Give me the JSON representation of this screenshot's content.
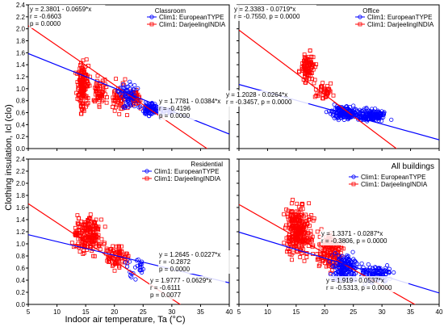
{
  "figure": {
    "y_axis_label": "Clothing insulation, Icl (clo)",
    "x_axis_label": "Indoor air temperature, Ta (°C)"
  },
  "colors": {
    "european": "#0000ff",
    "indian": "#ff0000",
    "axis": "#000000",
    "grid": "#c8c8c8"
  },
  "chart_data": [
    {
      "type": "scatter",
      "title": "Classroom",
      "xlim": [
        5,
        40
      ],
      "ylim": [
        0.0,
        2.4
      ],
      "x_ticks": [
        5,
        10,
        15,
        20,
        25,
        30,
        35,
        40
      ],
      "y_ticks": [
        0.0,
        0.2,
        0.4,
        0.6,
        0.8,
        1.0,
        1.2,
        1.4,
        1.6,
        1.8,
        2.0,
        2.2,
        2.4
      ],
      "legend": [
        "Clim1: EuropeanTYPE",
        "Clim1: DarjeelingINDIA"
      ],
      "annotations": [
        [
          "y = 2.3801 - 0.0659*x",
          "r = -0.6603",
          "p = 0.0000"
        ],
        [
          "y = 1.7781 - 0.0384*x",
          "r = -0.4196",
          "p = 0.0000"
        ]
      ],
      "fits": [
        {
          "series": "Clim1: DarjeelingINDIA",
          "intercept": 2.3801,
          "slope": -0.0659
        },
        {
          "series": "Clim1: EuropeanTYPE",
          "intercept": 1.7781,
          "slope": -0.0384
        }
      ],
      "clusters": {
        "Clim1: DarjeelingINDIA": [
          {
            "x": [
              13,
              16
            ],
            "y": [
              0.5,
              1.6
            ],
            "n": 150
          },
          {
            "x": [
              16,
              19
            ],
            "y": [
              0.6,
              1.3
            ],
            "n": 60
          },
          {
            "x": [
              19,
              23
            ],
            "y": [
              0.5,
              1.2
            ],
            "n": 55
          },
          {
            "x": [
              22,
              25
            ],
            "y": [
              0.6,
              1.1
            ],
            "n": 45
          }
        ],
        "Clim1: EuropeanTYPE": [
          {
            "x": [
              20,
              25
            ],
            "y": [
              0.55,
              1.2
            ],
            "n": 70
          },
          {
            "x": [
              24,
              29
            ],
            "y": [
              0.5,
              0.8
            ],
            "n": 90
          },
          {
            "x": [
              28,
              31
            ],
            "y": [
              0.55,
              0.7
            ],
            "n": 15
          }
        ]
      }
    },
    {
      "type": "scatter",
      "title": "Office",
      "xlim": [
        5,
        40
      ],
      "ylim": [
        0.0,
        2.4
      ],
      "x_ticks": [
        5,
        10,
        15,
        20,
        25,
        30,
        35,
        40
      ],
      "y_ticks": [
        0.0,
        0.2,
        0.4,
        0.6,
        0.8,
        1.0,
        1.2,
        1.4,
        1.6,
        1.8,
        2.0,
        2.2,
        2.4
      ],
      "legend": [
        "Clim1: EuropeanTYPE",
        "Clim1: DarjeelingINDIA"
      ],
      "annotations": [
        [
          "y = 2.3383 - 0.0719*x",
          "r = -0.7550, p = 0.0000"
        ],
        [
          "y = 1.2028 - 0.0264*x",
          "r = -0.3457, p = 0.0000"
        ]
      ],
      "fits": [
        {
          "series": "Clim1: DarjeelingINDIA",
          "intercept": 2.3383,
          "slope": -0.0719
        },
        {
          "series": "Clim1: EuropeanTYPE",
          "intercept": 1.2028,
          "slope": -0.0264
        }
      ],
      "clusters": {
        "Clim1: DarjeelingINDIA": [
          {
            "x": [
              15,
              19
            ],
            "y": [
              1.0,
              1.7
            ],
            "n": 100
          },
          {
            "x": [
              18,
              22
            ],
            "y": [
              0.75,
              1.15
            ],
            "n": 40
          }
        ],
        "Clim1: EuropeanTYPE": [
          {
            "x": [
              20,
              27
            ],
            "y": [
              0.45,
              0.75
            ],
            "n": 160
          },
          {
            "x": [
              24,
              32
            ],
            "y": [
              0.4,
              0.7
            ],
            "n": 150
          }
        ]
      }
    },
    {
      "type": "scatter",
      "title": "Residential",
      "xlim": [
        5,
        40
      ],
      "ylim": [
        0.0,
        2.4
      ],
      "x_ticks": [
        5,
        10,
        15,
        20,
        25,
        30,
        35,
        40
      ],
      "y_ticks": [
        0.0,
        0.2,
        0.4,
        0.6,
        0.8,
        1.0,
        1.2,
        1.4,
        1.6,
        1.8,
        2.0,
        2.2,
        2.4
      ],
      "legend": [
        "Clim1: EuropeanTYPE",
        "Clim1: DarjeelingINDIA"
      ],
      "annotations": [
        [
          "y = 1.2645 - 0.0227*x",
          "r = -0.2872",
          "p = 0.0000"
        ],
        [
          "y = 1.9777 - 0.0629*x",
          "r = -0.6111",
          "p = 0.0077"
        ]
      ],
      "fits": [
        {
          "series": "Clim1: DarjeelingINDIA",
          "intercept": 1.9777,
          "slope": -0.0629
        },
        {
          "series": "Clim1: EuropeanTYPE",
          "intercept": 1.2645,
          "slope": -0.0227
        }
      ],
      "clusters": {
        "Clim1: DarjeelingINDIA": [
          {
            "x": [
              12,
              19
            ],
            "y": [
              0.7,
              1.6
            ],
            "n": 200
          },
          {
            "x": [
              17,
              24
            ],
            "y": [
              0.5,
              1.1
            ],
            "n": 80
          }
        ],
        "Clim1: EuropeanTYPE": [
          {
            "x": [
              21,
              27
            ],
            "y": [
              0.4,
              0.8
            ],
            "n": 25
          }
        ]
      }
    },
    {
      "type": "scatter",
      "title": "All buildings",
      "xlim": [
        5,
        40
      ],
      "ylim": [
        0.0,
        2.4
      ],
      "x_ticks": [
        5,
        10,
        15,
        20,
        25,
        30,
        35,
        40
      ],
      "y_ticks": [
        0.0,
        0.2,
        0.4,
        0.6,
        0.8,
        1.0,
        1.2,
        1.4,
        1.6,
        1.8,
        2.0,
        2.2,
        2.4
      ],
      "legend": [
        "Clim1: EuropeanTYPE",
        "Clim1: DarjeelingINDIA"
      ],
      "annotations": [
        [
          "y = 1.3371 - 0.0287*x",
          "r = -0.3806, p = 0.0000"
        ],
        [
          "y = 1.919 - 0.0537*x",
          "r = -0.5313, p = 0.0000"
        ]
      ],
      "fits": [
        {
          "series": "Clim1: DarjeelingINDIA",
          "intercept": 1.919,
          "slope": -0.0537
        },
        {
          "series": "Clim1: EuropeanTYPE",
          "intercept": 1.3371,
          "slope": -0.0287
        }
      ],
      "clusters": {
        "Clim1: DarjeelingINDIA": [
          {
            "x": [
              12,
              19
            ],
            "y": [
              0.6,
              1.8
            ],
            "n": 280
          },
          {
            "x": [
              18,
              24
            ],
            "y": [
              0.4,
              1.3
            ],
            "n": 150
          }
        ],
        "Clim1: EuropeanTYPE": [
          {
            "x": [
              20,
              27
            ],
            "y": [
              0.3,
              0.9
            ],
            "n": 180
          },
          {
            "x": [
              25,
              33
            ],
            "y": [
              0.3,
              0.7
            ],
            "n": 120
          }
        ]
      }
    }
  ]
}
